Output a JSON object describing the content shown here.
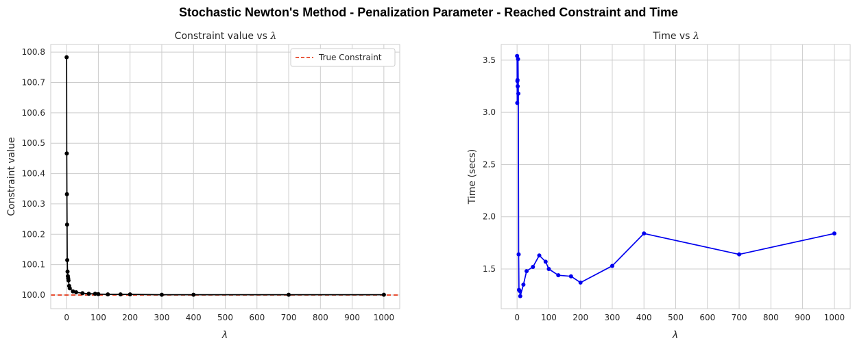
{
  "suptitle": "Stochastic Newton's Method - Penalization Parameter - Reached Constraint and Time",
  "chart_data": [
    {
      "type": "line",
      "title_prefix": "Constraint value vs ",
      "title_symbol": "λ",
      "xlabel": "λ",
      "ylabel": "Constraint value",
      "xlim": [
        -50,
        1050
      ],
      "ylim": [
        99.955,
        100.825
      ],
      "xticks": [
        0,
        100,
        200,
        300,
        400,
        500,
        600,
        700,
        800,
        900,
        1000
      ],
      "yticks": [
        100.0,
        100.1,
        100.2,
        100.3,
        100.4,
        100.5,
        100.6,
        100.7,
        100.8
      ],
      "ytick_labels": [
        "100.0",
        "100.1",
        "100.2",
        "100.3",
        "100.4",
        "100.5",
        "100.6",
        "100.7",
        "100.8"
      ],
      "grid": true,
      "legend": "top-right",
      "line_color": "#000000",
      "marker_color": "#000000",
      "reference_line": {
        "name": "True Constraint",
        "y": 100.0,
        "color": "#e22400",
        "style": "dashed"
      },
      "series": [
        {
          "x": [
            0.1,
            0.5,
            1,
            1.5,
            2,
            3,
            4,
            5,
            6,
            8,
            10,
            20,
            30,
            50,
            70,
            90,
            100,
            130,
            170,
            200,
            300,
            400,
            700,
            1000
          ],
          "y": [
            100.783,
            100.466,
            100.332,
            100.232,
            100.115,
            100.077,
            100.062,
            100.055,
            100.048,
            100.03,
            100.022,
            100.012,
            100.009,
            100.006,
            100.004,
            100.004,
            100.003,
            100.002,
            100.002,
            100.002,
            100.001,
            100.001,
            100.001,
            100.001
          ]
        }
      ]
    },
    {
      "type": "line",
      "title_prefix": "Time vs ",
      "title_symbol": "λ",
      "xlabel": "λ",
      "ylabel": "Time (secs)",
      "xlim": [
        -50,
        1050
      ],
      "ylim": [
        1.12,
        3.65
      ],
      "xticks": [
        0,
        100,
        200,
        300,
        400,
        500,
        600,
        700,
        800,
        900,
        1000
      ],
      "yticks": [
        1.5,
        2.0,
        2.5,
        3.0,
        3.5
      ],
      "ytick_labels": [
        "1.5",
        "2.0",
        "2.5",
        "3.0",
        "3.5"
      ],
      "grid": true,
      "line_color": "#0000ee",
      "marker_color": "#0000ee",
      "series": [
        {
          "x": [
            0.1,
            0.5,
            1,
            1.5,
            2,
            3,
            4,
            5,
            6,
            8,
            10,
            20,
            30,
            50,
            70,
            90,
            100,
            130,
            170,
            200,
            300,
            400,
            700,
            1000
          ],
          "y": [
            3.54,
            3.09,
            3.3,
            3.31,
            3.25,
            3.51,
            3.18,
            1.64,
            1.3,
            1.29,
            1.24,
            1.35,
            1.48,
            1.52,
            1.63,
            1.57,
            1.5,
            1.44,
            1.43,
            1.37,
            1.53,
            1.84,
            1.64,
            1.84
          ]
        }
      ]
    }
  ]
}
